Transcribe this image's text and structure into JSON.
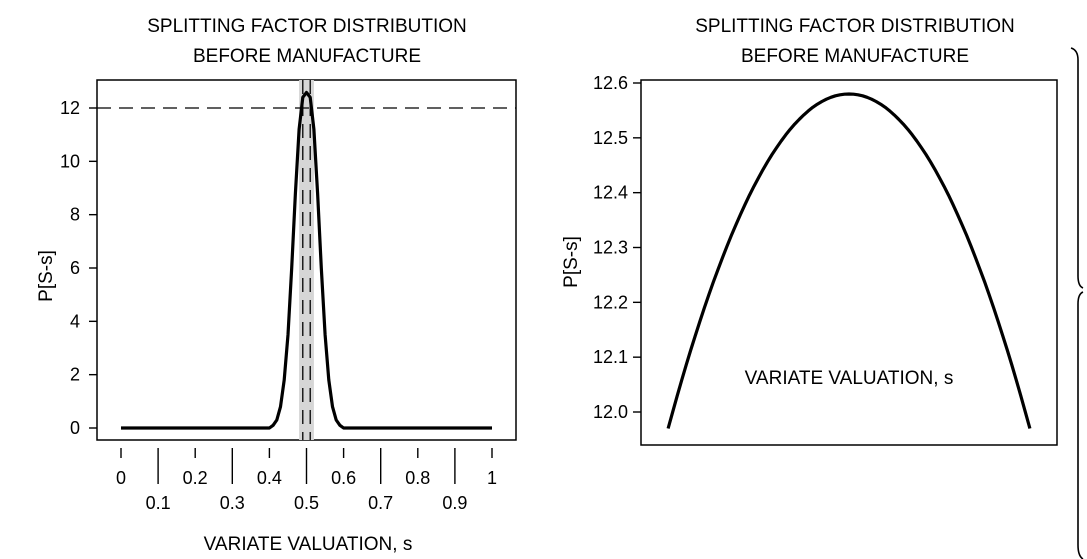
{
  "chart_data": [
    {
      "type": "line",
      "title_lines": [
        "SPLITTING FACTOR DISTRIBUTION",
        "BEFORE MANUFACTURE"
      ],
      "xlabel": "VARIATE VALUATION, s",
      "ylabel": "P[S-s]",
      "xlim": [
        0,
        1
      ],
      "ylim": [
        -0.5,
        13
      ],
      "xticks_top_row": [
        "0",
        "0.2",
        "0.4",
        "0.6",
        "0.8",
        "1"
      ],
      "xticks_bottom_row": [
        "0.1",
        "0.3",
        "0.5",
        "0.7",
        "0.9"
      ],
      "yticks": [
        "0",
        "2",
        "4",
        "6",
        "8",
        "10",
        "12"
      ],
      "reference_lines": {
        "horizontal_dashed_y": 12,
        "vertical_dashed_x": [
          0.49,
          0.51
        ]
      },
      "highlight_band_x": [
        0.48,
        0.52
      ],
      "series": [
        {
          "x": [
            0.0,
            0.4,
            0.41,
            0.42,
            0.43,
            0.44,
            0.45,
            0.46,
            0.47,
            0.48,
            0.49,
            0.5,
            0.51,
            0.52,
            0.53,
            0.54,
            0.55,
            0.56,
            0.57,
            0.58,
            0.59,
            0.6,
            1.0
          ],
          "y": [
            0.0,
            0.0,
            0.1,
            0.3,
            0.8,
            1.8,
            3.5,
            6.0,
            8.8,
            11.2,
            12.4,
            12.58,
            12.4,
            11.2,
            8.8,
            6.0,
            3.5,
            1.8,
            0.8,
            0.3,
            0.1,
            0.0,
            0.0
          ]
        }
      ]
    },
    {
      "type": "line",
      "title_lines": [
        "SPLITTING FACTOR DISTRIBUTION",
        "BEFORE MANUFACTURE"
      ],
      "xlabel": "VARIATE VALUATION, s",
      "ylabel": "P[S-s]",
      "xlim": [
        0.477,
        0.523
      ],
      "ylim": [
        11.925,
        12.615
      ],
      "yticks": [
        "12.0",
        "12.1",
        "12.2",
        "12.3",
        "12.4",
        "12.5",
        "12.6"
      ],
      "series": [
        {
          "x": [
            0.48,
            0.485,
            0.49,
            0.495,
            0.5,
            0.505,
            0.51,
            0.515,
            0.52
          ],
          "y": [
            11.97,
            12.3,
            12.48,
            12.56,
            12.58,
            12.56,
            12.48,
            12.3,
            11.97
          ]
        }
      ]
    }
  ]
}
